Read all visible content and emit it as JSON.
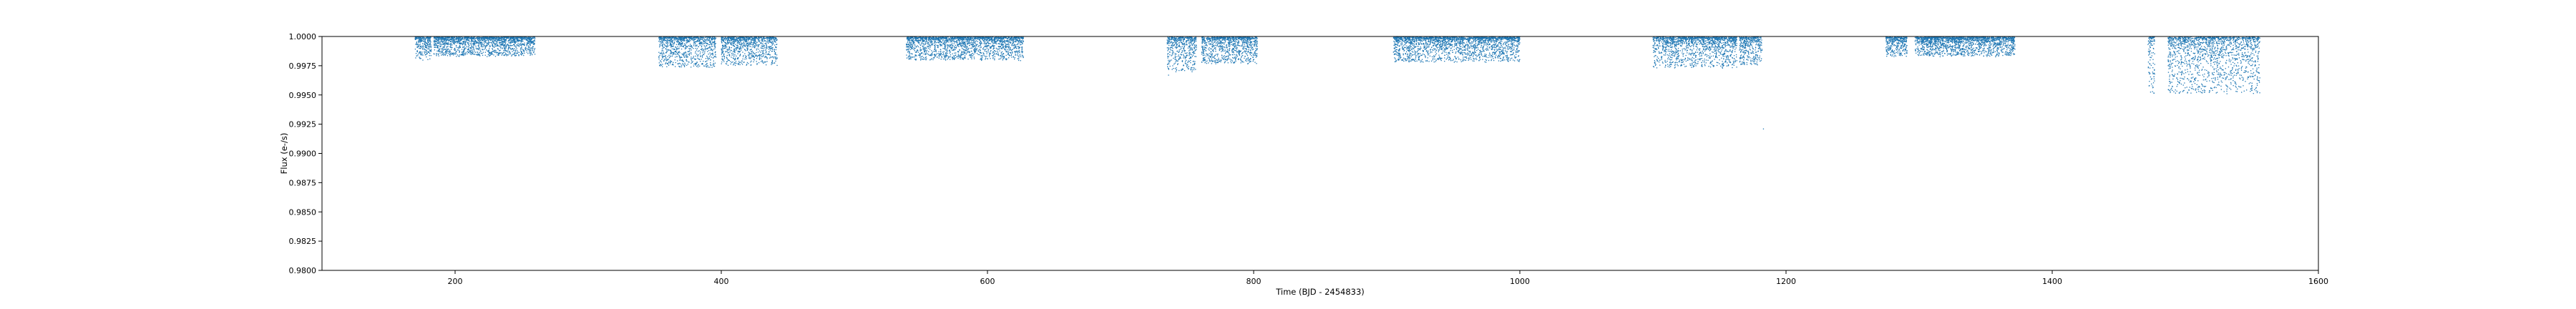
{
  "chart_data": {
    "type": "scatter",
    "title": "",
    "xlabel": "Time (BJD - 2454833)",
    "ylabel": "Flux (e-/s)",
    "xlim": [
      100,
      1600
    ],
    "ylim": [
      0.98,
      1.0
    ],
    "xticks": [
      200,
      400,
      600,
      800,
      1000,
      1200,
      1400,
      1600
    ],
    "yticks": [
      0.98,
      0.9825,
      0.985,
      0.9875,
      0.99,
      0.9925,
      0.995,
      0.9975,
      1.0
    ],
    "ytick_labels": [
      "0.9800",
      "0.9825",
      "0.9850",
      "0.9875",
      "0.9900",
      "0.9925",
      "0.9950",
      "0.9975",
      "1.0000"
    ],
    "grid": false,
    "legend": "none",
    "series": [
      {
        "color": "#1f77b4",
        "segments": [
          {
            "x": [
              170,
              182
            ],
            "y_mean": 0.9993,
            "y_spread": 0.0012
          },
          {
            "x": [
              184,
              260
            ],
            "y_mean": 0.9994,
            "y_spread": 0.001
          },
          {
            "x": [
              353,
              396
            ],
            "y_mean": 0.999,
            "y_spread": 0.0016
          },
          {
            "x": [
              400,
              442
            ],
            "y_mean": 0.9991,
            "y_spread": 0.0015
          },
          {
            "x": [
              539,
              627
            ],
            "y_mean": 0.9993,
            "y_spread": 0.0012
          },
          {
            "x": [
              735,
              757
            ],
            "y_mean": 0.999,
            "y_spread": 0.0018
          },
          {
            "x": [
              761,
              803
            ],
            "y_mean": 0.9992,
            "y_spread": 0.0014
          },
          {
            "x": [
              905,
              1000
            ],
            "y_mean": 0.9993,
            "y_spread": 0.0013
          },
          {
            "x": [
              1100,
              1163
            ],
            "y_mean": 0.9991,
            "y_spread": 0.0016
          },
          {
            "x": [
              1165,
              1182
            ],
            "y_mean": 0.999,
            "y_spread": 0.0015
          },
          {
            "x": [
              1275,
              1291
            ],
            "y_mean": 0.9993,
            "y_spread": 0.001
          },
          {
            "x": [
              1297,
              1372
            ],
            "y_mean": 0.9994,
            "y_spread": 0.001
          },
          {
            "x": [
              1472,
              1477
            ],
            "y_mean": 0.9975,
            "y_spread": 0.003
          },
          {
            "x": [
              1487,
              1556
            ],
            "y_mean": 0.9983,
            "y_spread": 0.003
          }
        ],
        "outliers": [
          {
            "x": 1183,
            "y": 0.9921
          },
          {
            "x": 1554,
            "y": 0.9952
          },
          {
            "x": 1473,
            "y": 0.9958
          },
          {
            "x": 736,
            "y": 0.9967
          }
        ]
      }
    ]
  }
}
